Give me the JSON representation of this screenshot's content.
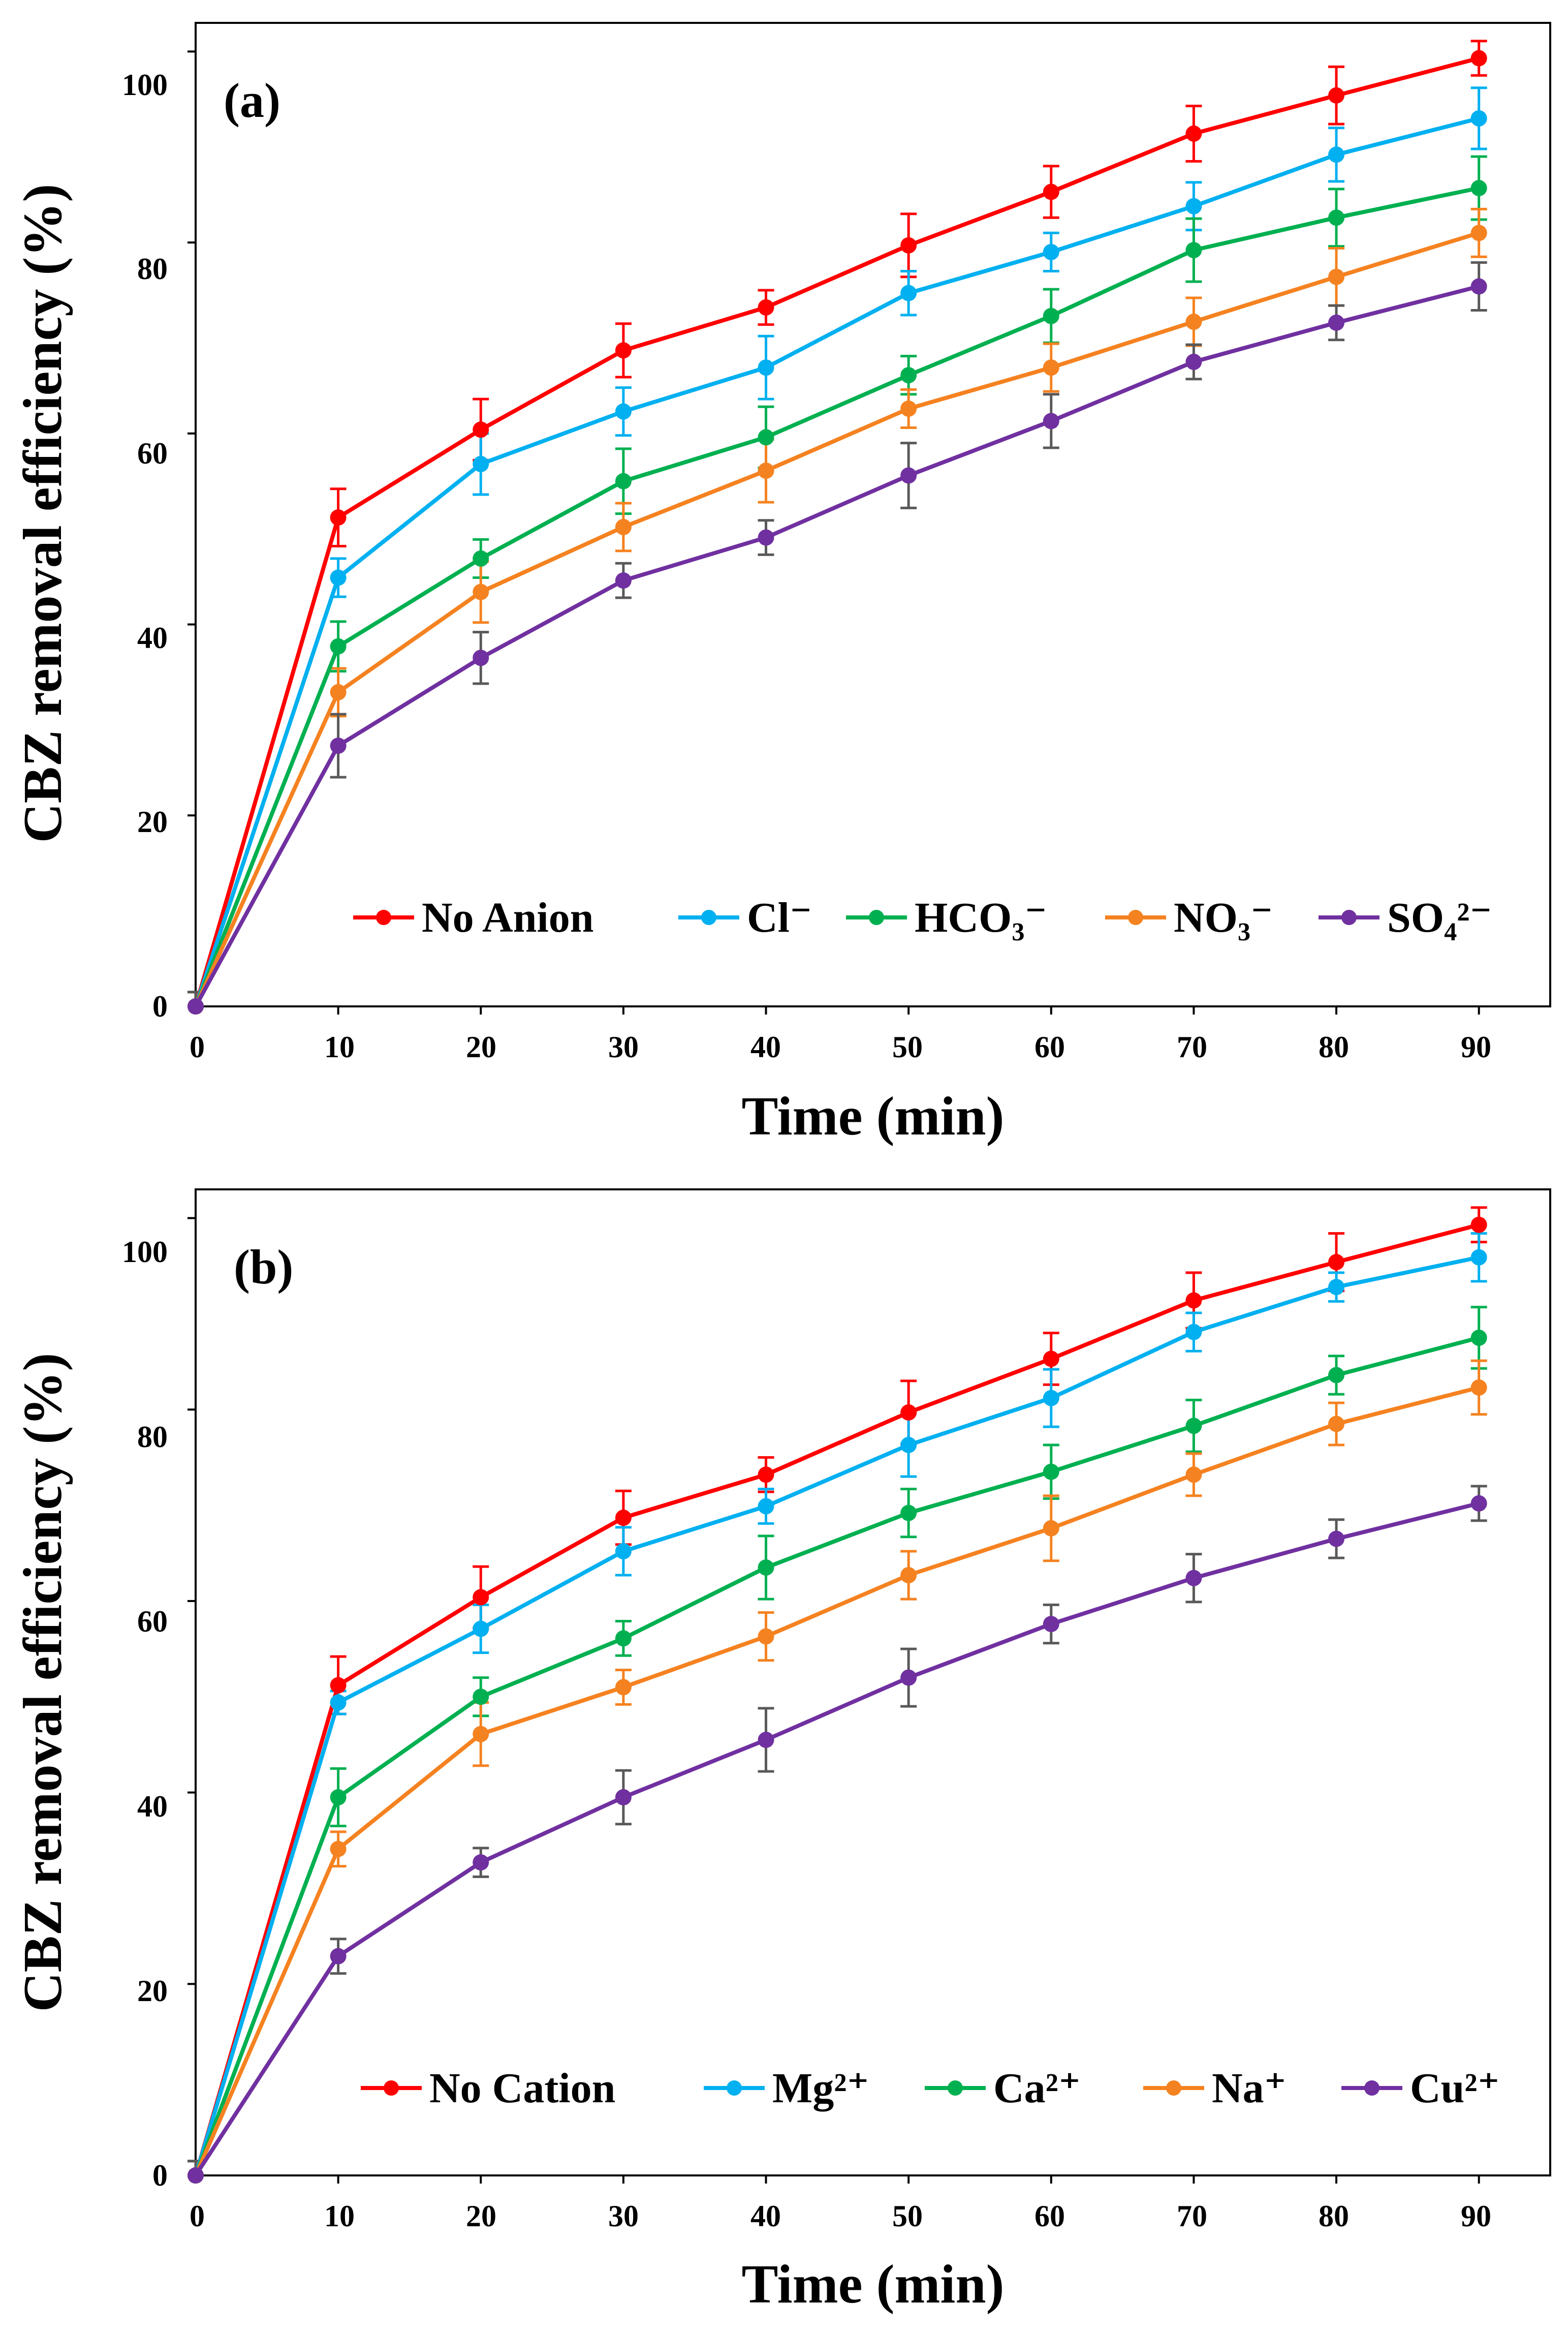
{
  "chart_data": [
    {
      "type": "line",
      "panel_label": "(a)",
      "xlabel": "Time (min)",
      "ylabel": "CBZ removal efficiency (%)",
      "x": [
        0,
        10,
        20,
        30,
        40,
        50,
        60,
        70,
        80,
        90
      ],
      "x_ticks": [
        "0",
        "10",
        "20",
        "30",
        "40",
        "50",
        "60",
        "70",
        "80",
        "90"
      ],
      "y_ticks": [
        "0",
        "20",
        "40",
        "60",
        "80",
        "100"
      ],
      "xlim": [
        0,
        95
      ],
      "ylim": [
        0,
        103
      ],
      "grid": false,
      "legend_position": "bottom",
      "series": [
        {
          "name": "No Anion",
          "color": "#ff0000",
          "values": [
            0,
            51.2,
            60.4,
            68.7,
            73.2,
            79.7,
            85.3,
            91.4,
            95.4,
            99.3
          ],
          "errors": [
            1.5,
            3.0,
            3.2,
            2.8,
            1.8,
            3.3,
            2.7,
            2.9,
            3.0,
            1.8
          ]
        },
        {
          "name": "Cl⁻",
          "color": "#00b0f0",
          "values": [
            0,
            44.9,
            56.8,
            62.3,
            66.9,
            74.7,
            79.0,
            83.8,
            89.2,
            93.0
          ],
          "errors": [
            1.5,
            2.0,
            3.2,
            2.5,
            3.3,
            2.3,
            2.0,
            2.5,
            2.8,
            3.2
          ]
        },
        {
          "name": "HCO₃⁻",
          "color": "#00b050",
          "values": [
            0,
            37.7,
            46.9,
            55.0,
            59.6,
            66.1,
            72.3,
            79.2,
            82.6,
            85.7
          ],
          "errors": [
            1.5,
            2.6,
            2.0,
            3.4,
            3.2,
            2.0,
            2.8,
            3.3,
            3.0,
            3.3
          ]
        },
        {
          "name": "NO₃⁻",
          "color": "#f58220",
          "values": [
            0,
            32.9,
            43.4,
            50.2,
            56.1,
            62.6,
            66.9,
            71.7,
            76.4,
            81.0
          ],
          "errors": [
            1.5,
            2.5,
            3.2,
            2.5,
            3.3,
            2.0,
            2.5,
            2.5,
            3.0,
            2.5
          ]
        },
        {
          "name": "SO₄²⁻",
          "color": "#7030a0",
          "values": [
            0,
            27.3,
            36.5,
            44.6,
            49.1,
            55.6,
            61.3,
            67.5,
            71.6,
            75.4
          ],
          "errors": [
            1.5,
            3.3,
            2.7,
            1.8,
            1.8,
            3.4,
            2.8,
            1.8,
            1.8,
            2.5
          ],
          "error_color": "#595959"
        }
      ]
    },
    {
      "type": "line",
      "panel_label": "(b)",
      "xlabel": "Time (min)",
      "ylabel": "CBZ removal efficiency (%)",
      "x": [
        0,
        10,
        20,
        30,
        40,
        50,
        60,
        70,
        80,
        90
      ],
      "x_ticks": [
        "0",
        "10",
        "20",
        "30",
        "40",
        "50",
        "60",
        "70",
        "80",
        "90"
      ],
      "y_ticks": [
        "0",
        "20",
        "40",
        "60",
        "80",
        "100"
      ],
      "xlim": [
        0,
        95
      ],
      "ylim": [
        0,
        103
      ],
      "grid": false,
      "legend_position": "bottom",
      "series": [
        {
          "name": "No Cation",
          "color": "#ff0000",
          "values": [
            0,
            51.2,
            60.4,
            68.7,
            73.2,
            79.7,
            85.3,
            91.4,
            95.4,
            99.3
          ],
          "errors": [
            1.5,
            3.0,
            3.2,
            2.8,
            1.8,
            3.3,
            2.7,
            2.9,
            3.0,
            1.8
          ]
        },
        {
          "name": "Mg²⁺",
          "color": "#00b0f0",
          "values": [
            0,
            49.4,
            57.1,
            65.2,
            69.9,
            76.3,
            81.2,
            88.1,
            92.8,
            95.9
          ],
          "errors": [
            1.5,
            1.2,
            2.5,
            2.5,
            1.8,
            3.3,
            3.0,
            2.0,
            1.5,
            2.5
          ]
        },
        {
          "name": "Ca²⁺",
          "color": "#00b050",
          "values": [
            0,
            39.5,
            50.0,
            56.1,
            63.5,
            69.2,
            73.5,
            78.3,
            83.6,
            87.5
          ],
          "errors": [
            1.5,
            3.0,
            2.0,
            1.8,
            3.3,
            2.5,
            2.8,
            2.7,
            2.0,
            3.2
          ]
        },
        {
          "name": "Na⁺",
          "color": "#f58220",
          "values": [
            0,
            34.1,
            46.1,
            51.0,
            56.3,
            62.7,
            67.6,
            73.2,
            78.5,
            82.3
          ],
          "errors": [
            1.5,
            1.8,
            3.3,
            1.8,
            2.5,
            2.5,
            3.4,
            2.2,
            2.2,
            2.8
          ]
        },
        {
          "name": "Cu²⁺",
          "color": "#7030a0",
          "values": [
            0,
            22.9,
            32.7,
            39.5,
            45.5,
            52.0,
            57.6,
            62.4,
            66.5,
            70.2
          ],
          "errors": [
            1.5,
            1.8,
            1.5,
            2.8,
            3.3,
            3.0,
            2.0,
            2.5,
            2.0,
            1.8
          ],
          "error_color": "#595959"
        }
      ]
    }
  ]
}
